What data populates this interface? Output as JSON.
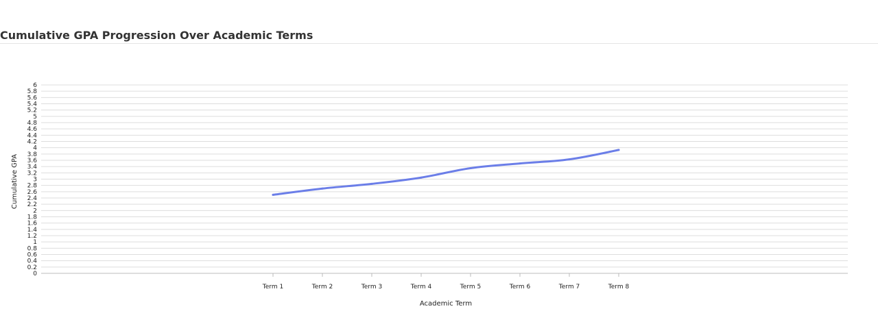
{
  "chart_data": {
    "type": "line",
    "title": "Cumulative GPA Progression Over Academic Terms",
    "xlabel": "Academic Term",
    "ylabel": "Cumulative GPA",
    "categories": [
      "Term 1",
      "Term 2",
      "Term 3",
      "Term 4",
      "Term 5",
      "Term 6",
      "Term 7",
      "Term 8"
    ],
    "series": [
      {
        "values": [
          2.5,
          2.7,
          2.85,
          3.05,
          3.35,
          3.5,
          3.63,
          3.93
        ],
        "color": "#6b7ee8"
      }
    ],
    "ylim": [
      0,
      6
    ],
    "ytick_step": 0.2,
    "grid": true,
    "legend": "none"
  }
}
